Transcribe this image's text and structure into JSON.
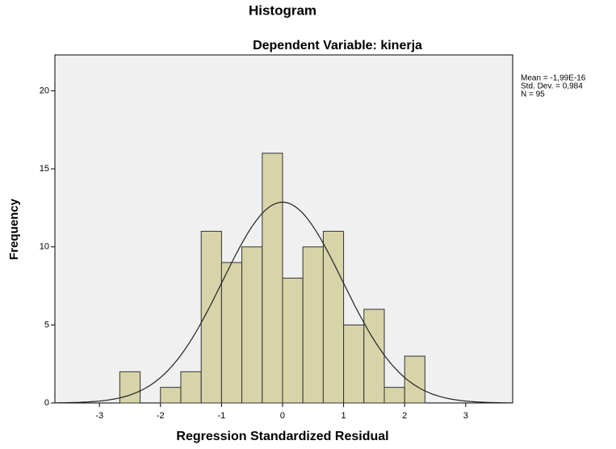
{
  "chart_data": {
    "type": "histogram",
    "title": "Histogram",
    "subtitle": "Dependent Variable: kinerja",
    "xlabel": "Regression Standardized Residual",
    "ylabel": "Frequency",
    "bins": [
      -2.667,
      -2.333,
      -2,
      -1.667,
      -1.333,
      -1,
      -0.667,
      -0.333,
      0,
      0.333,
      0.667,
      1,
      1.333,
      1.667,
      2,
      2.333
    ],
    "counts": [
      2,
      0,
      1,
      2,
      11,
      9,
      10,
      16,
      8,
      10,
      11,
      5,
      6,
      1,
      3
    ],
    "color": "#d8d4a9",
    "xlim": [
      -3.73,
      3.77
    ],
    "ylim": [
      0,
      22.3
    ],
    "xticks": [
      -3,
      -2,
      -1,
      0,
      1,
      2,
      3
    ],
    "yticks": [
      0,
      5,
      10,
      15,
      20
    ],
    "normal_curve": [
      {
        "value": -1.99e-16,
        "label": "Mean = -1,99E-16"
      },
      {
        "value": 0.984,
        "label": "Std. Dev. = 0,984"
      },
      {
        "value": 95,
        "label": "N = 95"
      }
    ]
  }
}
